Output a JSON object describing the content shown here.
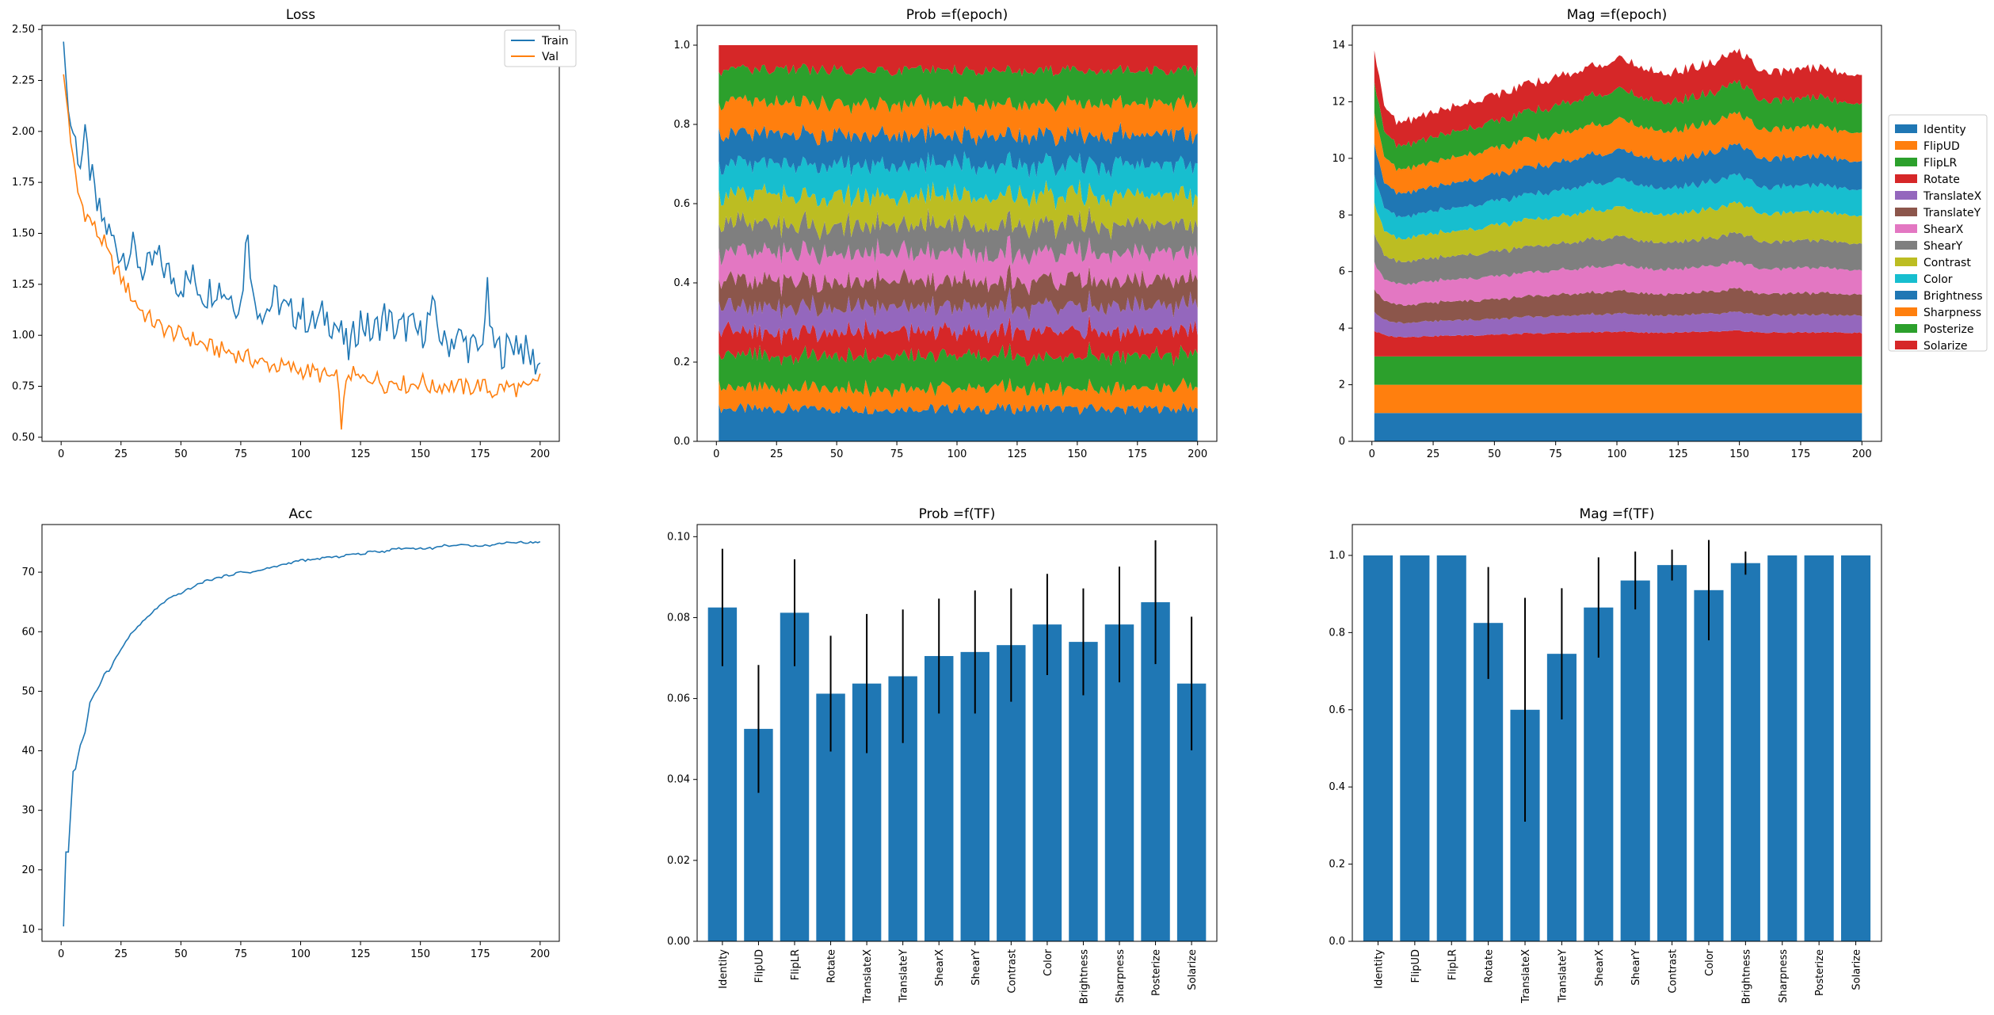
{
  "chart_data": [
    {
      "type": "line",
      "title": "Loss",
      "xlim": [
        -8,
        208
      ],
      "ylim": [
        0.48,
        2.52
      ],
      "xticks": [
        0,
        25,
        50,
        75,
        100,
        125,
        150,
        175,
        200
      ],
      "yticks": [
        0.5,
        0.75,
        1.0,
        1.25,
        1.5,
        1.75,
        2.0,
        2.25,
        2.5
      ],
      "ytick_labels": [
        "0.50",
        "0.75",
        "1.00",
        "1.25",
        "1.50",
        "1.75",
        "2.00",
        "2.25",
        "2.50"
      ],
      "legend": "top-right",
      "series": [
        {
          "name": "Train",
          "color": "#1f77b4",
          "x": [
            1,
            3,
            5,
            8,
            10,
            13,
            15,
            18,
            20,
            25,
            30,
            35,
            40,
            45,
            50,
            55,
            60,
            65,
            70,
            75,
            78,
            80,
            85,
            90,
            95,
            100,
            105,
            110,
            115,
            120,
            125,
            130,
            135,
            140,
            145,
            150,
            155,
            160,
            165,
            170,
            175,
            178,
            180,
            185,
            190,
            195,
            200
          ],
          "y": [
            2.44,
            2.1,
            2.0,
            1.85,
            1.95,
            1.75,
            1.62,
            1.55,
            1.5,
            1.4,
            1.42,
            1.3,
            1.38,
            1.3,
            1.25,
            1.28,
            1.2,
            1.25,
            1.2,
            1.15,
            1.55,
            1.18,
            1.12,
            1.18,
            1.1,
            1.12,
            1.05,
            1.1,
            1.05,
            0.92,
            1.08,
            1.0,
            1.1,
            1.02,
            1.05,
            1.0,
            1.12,
            0.95,
            1.0,
            0.95,
            0.92,
            1.2,
            0.95,
            0.92,
            0.98,
            0.9,
            0.85
          ]
        },
        {
          "name": "Val",
          "color": "#ff7f0e",
          "x": [
            1,
            3,
            5,
            7,
            10,
            13,
            15,
            18,
            20,
            25,
            30,
            35,
            40,
            45,
            50,
            55,
            60,
            65,
            70,
            75,
            80,
            85,
            90,
            95,
            100,
            105,
            110,
            115,
            117,
            120,
            125,
            130,
            135,
            140,
            145,
            150,
            155,
            160,
            165,
            170,
            175,
            180,
            185,
            190,
            195,
            200
          ],
          "y": [
            2.28,
            2.08,
            1.85,
            1.7,
            1.6,
            1.55,
            1.5,
            1.45,
            1.38,
            1.28,
            1.18,
            1.1,
            1.05,
            1.02,
            1.0,
            0.98,
            0.95,
            0.93,
            0.92,
            0.9,
            0.88,
            0.86,
            0.85,
            0.84,
            0.83,
            0.82,
            0.8,
            0.79,
            0.58,
            0.82,
            0.78,
            0.8,
            0.76,
            0.78,
            0.75,
            0.78,
            0.74,
            0.76,
            0.75,
            0.74,
            0.76,
            0.72,
            0.75,
            0.74,
            0.73,
            0.8
          ]
        }
      ]
    },
    {
      "type": "area",
      "title": "Prob =f(epoch)",
      "xlim": [
        -8,
        208
      ],
      "ylim": [
        0,
        1.05
      ],
      "xticks": [
        0,
        25,
        50,
        75,
        100,
        125,
        150,
        175,
        200
      ],
      "yticks": [
        0.0,
        0.2,
        0.4,
        0.6,
        0.8,
        1.0
      ],
      "ytick_labels": [
        "0.0",
        "0.2",
        "0.4",
        "0.6",
        "0.8",
        "1.0"
      ],
      "x": [
        1,
        5,
        10,
        20,
        40,
        60,
        80,
        100,
        120,
        140,
        160,
        180,
        200
      ],
      "stacked_share": [
        0.082,
        0.052,
        0.081,
        0.061,
        0.063,
        0.065,
        0.07,
        0.071,
        0.073,
        0.078,
        0.074,
        0.078,
        0.084,
        0.063
      ]
    },
    {
      "type": "area",
      "title": "Mag =f(epoch)",
      "xlim": [
        -8,
        208
      ],
      "ylim": [
        0,
        14.7
      ],
      "xticks": [
        0,
        25,
        50,
        75,
        100,
        125,
        150,
        175,
        200
      ],
      "yticks": [
        0,
        2,
        4,
        6,
        8,
        10,
        12,
        14
      ],
      "ytick_labels": [
        "0",
        "2",
        "4",
        "6",
        "8",
        "10",
        "12",
        "14"
      ],
      "legend": "right",
      "x": [
        1,
        5,
        10,
        20,
        40,
        60,
        80,
        100,
        120,
        140,
        150,
        160,
        180,
        200
      ],
      "top_total": [
        13.9,
        12.0,
        11.2,
        11.5,
        12.0,
        12.5,
        13.0,
        13.5,
        13.0,
        13.4,
        13.8,
        13.0,
        13.2,
        13.0
      ],
      "stacked_mean_mag": [
        1.0,
        1.0,
        1.0,
        0.82,
        0.6,
        0.74,
        0.86,
        0.93,
        0.97,
        0.91,
        0.98,
        1.0,
        1.0,
        1.0
      ]
    },
    {
      "type": "line",
      "title": "Acc",
      "xlim": [
        -8,
        208
      ],
      "ylim": [
        8,
        78
      ],
      "xticks": [
        0,
        25,
        50,
        75,
        100,
        125,
        150,
        175,
        200
      ],
      "yticks": [
        10,
        20,
        30,
        40,
        50,
        60,
        70
      ],
      "ytick_labels": [
        "10",
        "20",
        "30",
        "40",
        "50",
        "60",
        "70"
      ],
      "series": [
        {
          "color": "#1f77b4",
          "x": [
            1,
            2,
            3,
            4,
            5,
            6,
            8,
            10,
            12,
            14,
            16,
            18,
            20,
            22,
            25,
            28,
            30,
            35,
            40,
            45,
            50,
            55,
            60,
            65,
            70,
            75,
            80,
            85,
            90,
            95,
            100,
            105,
            110,
            115,
            120,
            125,
            130,
            135,
            140,
            145,
            150,
            155,
            160,
            165,
            170,
            175,
            180,
            185,
            190,
            195,
            200
          ],
          "y": [
            10.5,
            23,
            23,
            30,
            36.5,
            37,
            41,
            43,
            48,
            49.5,
            51,
            53,
            53.5,
            55,
            57,
            59,
            60,
            62,
            64,
            65.5,
            66.5,
            67.5,
            68.5,
            69,
            69.5,
            70,
            70,
            70.5,
            71,
            71.5,
            72,
            72,
            72.5,
            72.5,
            73,
            73,
            73.5,
            73.5,
            74,
            74,
            74,
            74,
            74.5,
            74.5,
            74.5,
            74.5,
            74.5,
            75,
            75,
            75,
            75
          ]
        }
      ]
    },
    {
      "type": "bar",
      "title": "Prob =f(TF)",
      "ylim": [
        0,
        0.103
      ],
      "yticks": [
        0.0,
        0.02,
        0.04,
        0.06,
        0.08,
        0.1
      ],
      "ytick_labels": [
        "0.00",
        "0.02",
        "0.04",
        "0.06",
        "0.08",
        "0.10"
      ],
      "categories": [
        "Identity",
        "FlipUD",
        "FlipLR",
        "Rotate",
        "TranslateX",
        "TranslateY",
        "ShearX",
        "ShearY",
        "Contrast",
        "Color",
        "Brightness",
        "Sharpness",
        "Posterize",
        "Solarize"
      ],
      "values": [
        0.0825,
        0.0525,
        0.0812,
        0.0612,
        0.0637,
        0.0655,
        0.0705,
        0.0715,
        0.0732,
        0.0783,
        0.074,
        0.0783,
        0.0838,
        0.0637
      ],
      "errors": [
        0.0145,
        0.0158,
        0.0132,
        0.0143,
        0.0172,
        0.0165,
        0.0142,
        0.0152,
        0.014,
        0.0125,
        0.0132,
        0.0143,
        0.0153,
        0.0165
      ],
      "color": "#1f77b4"
    },
    {
      "type": "bar",
      "title": "Mag =f(TF)",
      "ylim": [
        0,
        1.08
      ],
      "yticks": [
        0.0,
        0.2,
        0.4,
        0.6,
        0.8,
        1.0
      ],
      "ytick_labels": [
        "0.0",
        "0.2",
        "0.4",
        "0.6",
        "0.8",
        "1.0"
      ],
      "categories": [
        "Identity",
        "FlipUD",
        "FlipLR",
        "Rotate",
        "TranslateX",
        "TranslateY",
        "ShearX",
        "ShearY",
        "Contrast",
        "Color",
        "Brightness",
        "Sharpness",
        "Posterize",
        "Solarize"
      ],
      "values": [
        1.0,
        1.0,
        1.0,
        0.825,
        0.6,
        0.745,
        0.865,
        0.935,
        0.975,
        0.91,
        0.98,
        1.0,
        1.0,
        1.0
      ],
      "errors": [
        0,
        0,
        0,
        0.145,
        0.29,
        0.17,
        0.13,
        0.075,
        0.04,
        0.13,
        0.03,
        0,
        0,
        0
      ],
      "color": "#1f77b4"
    }
  ],
  "legend": {
    "entries": [
      "Identity",
      "FlipUD",
      "FlipLR",
      "Rotate",
      "TranslateX",
      "TranslateY",
      "ShearX",
      "ShearY",
      "Contrast",
      "Color",
      "Brightness",
      "Sharpness",
      "Posterize",
      "Solarize"
    ],
    "colors": [
      "#1f77b4",
      "#ff7f0e",
      "#2ca02c",
      "#d62728",
      "#9467bd",
      "#8c564b",
      "#e377c2",
      "#7f7f7f",
      "#bcbd22",
      "#17becf",
      "#1f77b4",
      "#ff7f0e",
      "#2ca02c",
      "#d62728"
    ]
  },
  "loss_legend": {
    "entries": [
      "Train",
      "Val"
    ],
    "colors": [
      "#1f77b4",
      "#ff7f0e"
    ]
  }
}
